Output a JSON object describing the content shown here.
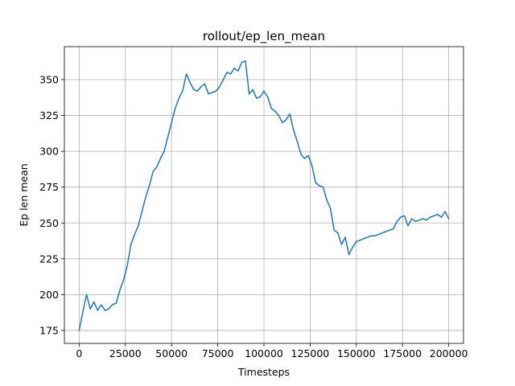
{
  "chart_data": {
    "type": "line",
    "title": "rollout/ep_len_mean",
    "xlabel": "Timesteps",
    "ylabel": "Ep len mean",
    "xlim": [
      -8000,
      208000
    ],
    "ylim": [
      166,
      373
    ],
    "grid": true,
    "xticks": [
      0,
      25000,
      50000,
      75000,
      100000,
      125000,
      150000,
      175000,
      200000
    ],
    "yticks": [
      175,
      200,
      225,
      250,
      275,
      300,
      325,
      350
    ],
    "line_color": "#1f77b4",
    "series": [
      {
        "x": [
          0,
          2000,
          4000,
          6000,
          8000,
          10000,
          12000,
          14000,
          16000,
          18000,
          20000,
          22000,
          24000,
          26000,
          28000,
          30000,
          32000,
          34000,
          36000,
          38000,
          40000,
          42000,
          44000,
          46000,
          48000,
          50000,
          52000,
          54000,
          56000,
          58000,
          60000,
          62000,
          64000,
          66000,
          68000,
          70000,
          72000,
          74000,
          76000,
          78000,
          80000,
          82000,
          84000,
          86000,
          88000,
          90000,
          92000,
          94000,
          96000,
          98000,
          100000,
          102000,
          104000,
          106000,
          108000,
          110000,
          112000,
          114000,
          116000,
          118000,
          120000,
          122000,
          124000,
          126000,
          128000,
          130000,
          132000,
          134000,
          136000,
          138000,
          140000,
          142000,
          144000,
          146000,
          148000,
          150000,
          152000,
          154000,
          156000,
          158000,
          160000,
          162000,
          164000,
          166000,
          168000,
          170000,
          172000,
          174000,
          176000,
          178000,
          180000,
          182000,
          184000,
          186000,
          188000,
          190000,
          192000,
          194000,
          196000,
          198000,
          200000
        ],
        "y": [
          175,
          188,
          200,
          190,
          195,
          189,
          193,
          189,
          190,
          193,
          194,
          203,
          210,
          220,
          235,
          242,
          248,
          258,
          268,
          276,
          286,
          289,
          295,
          300,
          310,
          320,
          330,
          337,
          342,
          354,
          348,
          343,
          342,
          345,
          347,
          340,
          341,
          342,
          345,
          350,
          355,
          354,
          358,
          356,
          362,
          363,
          340,
          343,
          337,
          338,
          342,
          338,
          330,
          328,
          325,
          320,
          322,
          326,
          315,
          307,
          298,
          295,
          297,
          290,
          278,
          276,
          275,
          266,
          260,
          245,
          243,
          235,
          240,
          228,
          233,
          237,
          238,
          239,
          240,
          241,
          241,
          242,
          243,
          244,
          245,
          246,
          251,
          254,
          255,
          248,
          253,
          251,
          252,
          253,
          252,
          254,
          255,
          256,
          254,
          258,
          253
        ]
      }
    ]
  }
}
